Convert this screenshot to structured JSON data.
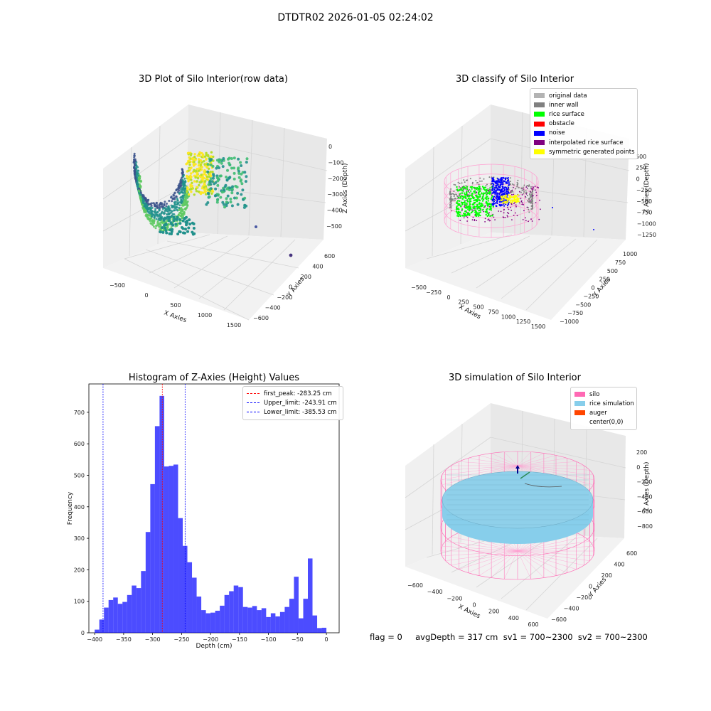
{
  "suptitle": "DTDTR02 2026-01-05 02:24:02",
  "footer": "flag = 0     avgDepth = 317 cm  sv1 = 700~2300  sv2 = 700~2300",
  "chart_data": [
    {
      "type": "scatter",
      "title": "3D Plot of Silo Interior(row data)",
      "xlabel": "X Axies",
      "ylabel": "Y Axies",
      "zlabel": "Z Axies (Depth)",
      "x_ticks": [
        "−500",
        "0",
        "500",
        "1000",
        "1500"
      ],
      "y_ticks": [
        "−600",
        "−400",
        "−200",
        "0",
        "200",
        "400",
        "600"
      ],
      "z_ticks": [
        "0",
        "−100",
        "−200",
        "−300",
        "−400",
        "−500"
      ],
      "xlim": [
        -600,
        1600
      ],
      "ylim": [
        -650,
        650
      ],
      "zlim": [
        -560,
        20
      ],
      "colormap": "viridis"
    },
    {
      "type": "scatter",
      "title": "3D classify of Silo Interior",
      "xlabel": "X Axies",
      "ylabel": "Y Axies",
      "zlabel": "Z Axies (Depth)",
      "x_ticks": [
        "−500",
        "−250",
        "0",
        "250",
        "500",
        "750",
        "1000",
        "1250",
        "1500"
      ],
      "y_ticks": [
        "−1000",
        "−750",
        "−500",
        "−250",
        "0",
        "250",
        "500",
        "750",
        "1000"
      ],
      "z_ticks": [
        "500",
        "250",
        "0",
        "−250",
        "−500",
        "−750",
        "−1000",
        "−1250"
      ],
      "legend": [
        {
          "label": "original data",
          "color": "#b3b3b3"
        },
        {
          "label": "inner wall",
          "color": "#808080"
        },
        {
          "label": "rice surface",
          "color": "#00ff00"
        },
        {
          "label": "obstacle",
          "color": "#ff0000"
        },
        {
          "label": "noise",
          "color": "#0000ff"
        },
        {
          "label": "interpolated rice surface",
          "color": "#800080"
        },
        {
          "label": "symmetric generated points",
          "color": "#ffff00"
        }
      ]
    },
    {
      "type": "bar",
      "title": "Histogram of Z-Axies (Height) Values",
      "xlabel": "Depth (cm)",
      "ylabel": "Frequency",
      "xlim": [
        -410,
        22
      ],
      "ylim": [
        0,
        790
      ],
      "x_ticks": [
        -400,
        -350,
        -300,
        -250,
        -200,
        -150,
        -100,
        -50,
        0
      ],
      "y_ticks": [
        0,
        100,
        200,
        300,
        400,
        500,
        600,
        700
      ],
      "bar_color": "#0000ff",
      "bin_width": 8,
      "bin_start": -400,
      "values": [
        10,
        42,
        80,
        104,
        112,
        92,
        98,
        120,
        150,
        142,
        196,
        320,
        472,
        656,
        752,
        528,
        530,
        534,
        364,
        276,
        224,
        175,
        115,
        72,
        62,
        64,
        70,
        86,
        120,
        132,
        150,
        145,
        82,
        80,
        85,
        72,
        78,
        50,
        62,
        52,
        66,
        82,
        108,
        178,
        46,
        108,
        236,
        55,
        15,
        16
      ],
      "vlines": [
        {
          "label": "first_peak: -283.25 cm",
          "x": -283.25,
          "color": "#ff0000"
        },
        {
          "label": "Upper_limit: -243.91 cm",
          "x": -243.91,
          "color": "#0000ff"
        },
        {
          "label": "Lower_limit: -385.53 cm",
          "x": -385.53,
          "color": "#0000ff"
        }
      ]
    },
    {
      "type": "scatter",
      "title": "3D simulation of Silo Interior",
      "xlabel": "X Axies",
      "ylabel": "Y Axies",
      "zlabel": "Z Axies (Depth)",
      "x_ticks": [
        "−600",
        "−400",
        "−200",
        "0",
        "200",
        "400",
        "600"
      ],
      "y_ticks": [
        "−600",
        "−400",
        "−200",
        "0",
        "200",
        "400",
        "600"
      ],
      "z_ticks": [
        "200",
        "0",
        "−200",
        "−400",
        "−600",
        "−800"
      ],
      "legend": [
        {
          "label": "silo",
          "color": "#ff69b4"
        },
        {
          "label": "rice simulation",
          "color": "#87ceeb"
        },
        {
          "label": "auger",
          "color": "#ff4500"
        },
        {
          "label": "center(0,0)",
          "color": ""
        }
      ]
    }
  ]
}
